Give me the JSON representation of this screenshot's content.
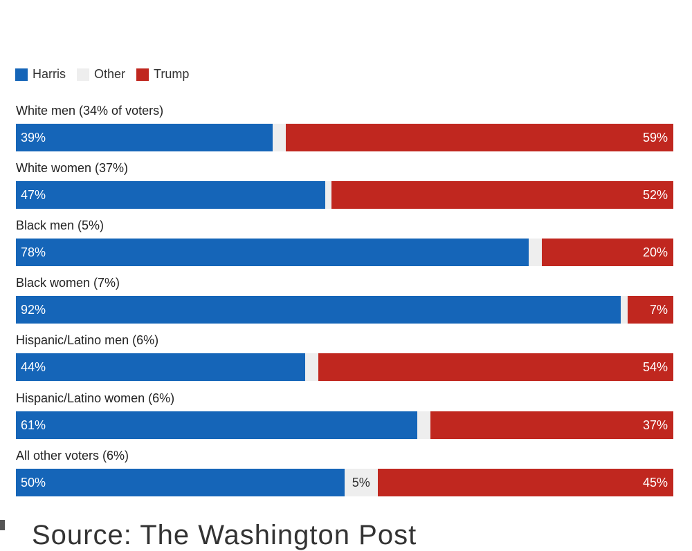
{
  "legend": {
    "harris": "Harris",
    "other": "Other",
    "trump": "Trump"
  },
  "colors": {
    "harris": "#1565b8",
    "other": "#eeeeee",
    "trump": "#c0271f"
  },
  "source": "Source: The Washington Post",
  "chart_data": {
    "type": "bar",
    "orientation": "horizontal-stacked-100",
    "title": "",
    "series_names": [
      "Harris",
      "Other",
      "Trump"
    ],
    "categories": [
      "White men (34% of voters)",
      "White women (37%)",
      "Black men (5%)",
      "Black women (7%)",
      "Hispanic/Latino men (6%)",
      "Hispanic/Latino women (6%)",
      "All other voters (6%)"
    ],
    "rows": [
      {
        "label": "White men (34% of voters)",
        "harris": 39,
        "other": 2,
        "trump": 59,
        "harris_label": "39%",
        "other_label": "",
        "trump_label": "59%"
      },
      {
        "label": "White women (37%)",
        "harris": 47,
        "other": 1,
        "trump": 52,
        "harris_label": "47%",
        "other_label": "",
        "trump_label": "52%"
      },
      {
        "label": "Black men (5%)",
        "harris": 78,
        "other": 2,
        "trump": 20,
        "harris_label": "78%",
        "other_label": "",
        "trump_label": "20%"
      },
      {
        "label": "Black women (7%)",
        "harris": 92,
        "other": 1,
        "trump": 7,
        "harris_label": "92%",
        "other_label": "",
        "trump_label": "7%"
      },
      {
        "label": "Hispanic/Latino men (6%)",
        "harris": 44,
        "other": 2,
        "trump": 54,
        "harris_label": "44%",
        "other_label": "",
        "trump_label": "54%"
      },
      {
        "label": "Hispanic/Latino women (6%)",
        "harris": 61,
        "other": 2,
        "trump": 37,
        "harris_label": "61%",
        "other_label": "",
        "trump_label": "37%"
      },
      {
        "label": "All other voters (6%)",
        "harris": 50,
        "other": 5,
        "trump": 45,
        "harris_label": "50%",
        "other_label": "5%",
        "trump_label": "45%"
      }
    ],
    "xlim": [
      0,
      100
    ]
  }
}
